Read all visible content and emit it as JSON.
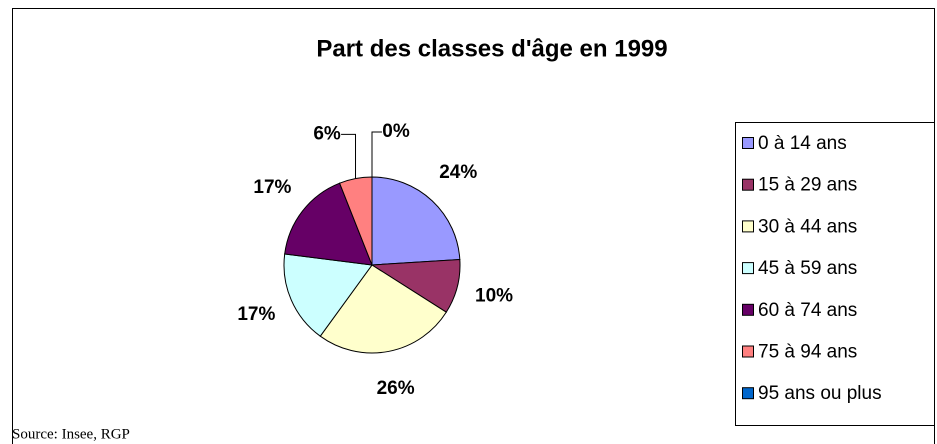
{
  "chart_data": {
    "type": "pie",
    "title": "Part des classes d'âge en 1999",
    "categories": [
      "0 à 14 ans",
      "15 à 29 ans",
      "30 à 44 ans",
      "45 à 59 ans",
      "60 à 74 ans",
      "75 à 94 ans",
      "95 ans ou plus"
    ],
    "values": [
      24,
      10,
      26,
      17,
      17,
      6,
      0
    ],
    "value_labels": [
      "24%",
      "10%",
      "26%",
      "17%",
      "17%",
      "6%",
      "0%"
    ],
    "colors": [
      "#9999FF",
      "#993366",
      "#FFFFCC",
      "#CCFFFF",
      "#660066",
      "#FF8080",
      "#0066CC"
    ],
    "source": "Source: Insee, RGP"
  }
}
